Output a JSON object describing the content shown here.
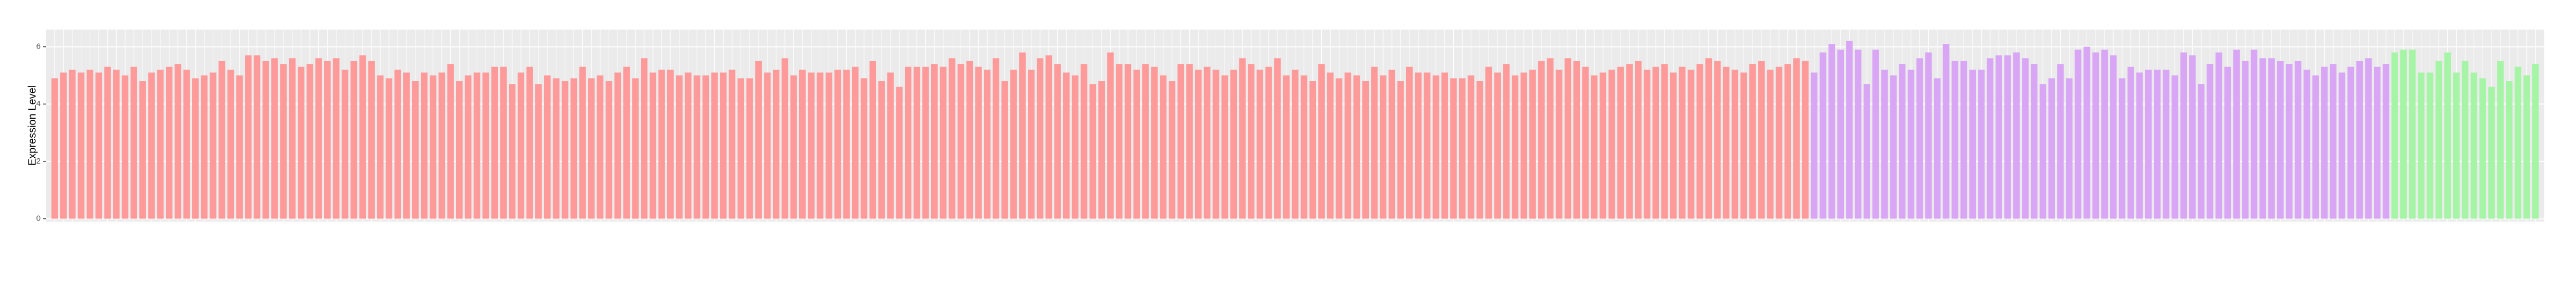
{
  "chart_data": {
    "type": "bar",
    "y_label": "Expression Level",
    "ylim": [
      -0.1,
      6.6
    ],
    "yticks": [
      0,
      2,
      4,
      6
    ],
    "grid": true,
    "groups": [
      {
        "color": "#ff9a9a",
        "values": [
          4.9,
          5.1,
          5.2,
          5.1,
          5.2,
          5.1,
          5.3,
          5.2,
          5.0,
          5.3,
          4.8,
          5.1,
          5.2,
          5.3,
          5.4,
          5.2,
          4.9,
          5.0,
          5.1,
          5.5,
          5.2,
          5.0,
          5.7,
          5.7,
          5.5,
          5.6,
          5.4,
          5.6,
          5.3,
          5.4,
          5.6,
          5.5,
          5.6,
          5.2,
          5.5,
          5.7,
          5.5,
          5.0,
          4.9,
          5.2,
          5.1,
          4.8,
          5.1,
          5.0,
          5.1,
          5.4,
          4.8,
          5.0,
          5.1,
          5.1,
          5.3,
          5.3,
          4.7,
          5.1,
          5.3,
          4.7,
          5.0,
          4.9,
          4.8,
          4.9,
          5.3,
          4.9,
          5.0,
          4.8,
          5.1,
          5.3,
          4.9,
          5.6,
          5.1,
          5.2,
          5.2,
          5.0,
          5.1,
          5.0,
          5.0,
          5.1,
          5.1,
          5.2,
          4.9,
          4.9,
          5.5,
          5.1,
          5.2,
          5.6,
          5.0,
          5.2,
          5.1,
          5.1,
          5.1,
          5.2,
          5.2,
          5.3,
          4.9,
          5.5,
          4.8,
          5.1,
          4.6,
          5.3,
          5.3,
          5.3,
          5.4,
          5.3,
          5.6,
          5.4,
          5.5,
          5.3,
          5.2,
          5.6,
          4.8,
          5.2,
          5.8,
          5.2,
          5.6,
          5.7,
          5.4,
          5.1,
          5.0,
          5.4,
          4.7,
          4.8,
          5.8,
          5.4,
          5.4,
          5.2,
          5.4,
          5.3,
          5.0,
          4.8,
          5.4,
          5.4,
          5.2,
          5.3,
          5.2,
          5.0,
          5.2,
          5.6,
          5.4,
          5.2,
          5.3,
          5.6,
          5.0,
          5.2,
          5.0,
          4.8,
          5.4,
          5.1,
          4.9,
          5.1,
          5.0,
          4.8,
          5.3,
          5.0,
          5.2,
          4.8,
          5.3,
          5.1,
          5.1,
          5.0,
          5.1,
          4.9,
          4.9,
          5.0,
          4.8,
          5.3,
          5.1,
          5.4,
          5.0,
          5.1,
          5.2,
          5.5,
          5.6,
          5.2,
          5.6,
          5.5,
          5.3,
          5.0,
          5.1,
          5.2,
          5.3,
          5.4,
          5.5,
          5.2,
          5.3,
          5.4,
          5.1,
          5.3,
          5.2,
          5.4,
          5.6,
          5.5,
          5.3,
          5.2,
          5.1,
          5.4,
          5.5,
          5.2,
          5.3,
          5.4,
          5.6,
          5.5
        ]
      },
      {
        "color": "#d9a6f5",
        "values": [
          5.1,
          5.8,
          6.1,
          5.9,
          6.2,
          5.9,
          4.7,
          5.9,
          5.2,
          5.0,
          5.4,
          5.2,
          5.6,
          5.8,
          4.9,
          6.1,
          5.5,
          5.5,
          5.2,
          5.2,
          5.6,
          5.7,
          5.7,
          5.8,
          5.6,
          5.4,
          4.7,
          4.9,
          5.4,
          4.9,
          5.9,
          6.0,
          5.8,
          5.9,
          5.7,
          4.9,
          5.3,
          5.1,
          5.2,
          5.2,
          5.2,
          5.0,
          5.8,
          5.7,
          4.7,
          5.4,
          5.8,
          5.3,
          5.9,
          5.5,
          5.9,
          5.6,
          5.6,
          5.5,
          5.4,
          5.5,
          5.2,
          5.0,
          5.3,
          5.4,
          5.1,
          5.3,
          5.5,
          5.6,
          5.3,
          5.4
        ]
      },
      {
        "color": "#a6f5a6",
        "values": [
          5.8,
          5.9,
          5.9,
          5.1,
          5.1,
          5.5,
          5.8,
          5.1,
          5.5,
          5.1,
          4.9,
          4.6,
          5.5,
          4.8,
          5.3,
          5.0,
          5.4
        ]
      }
    ]
  }
}
